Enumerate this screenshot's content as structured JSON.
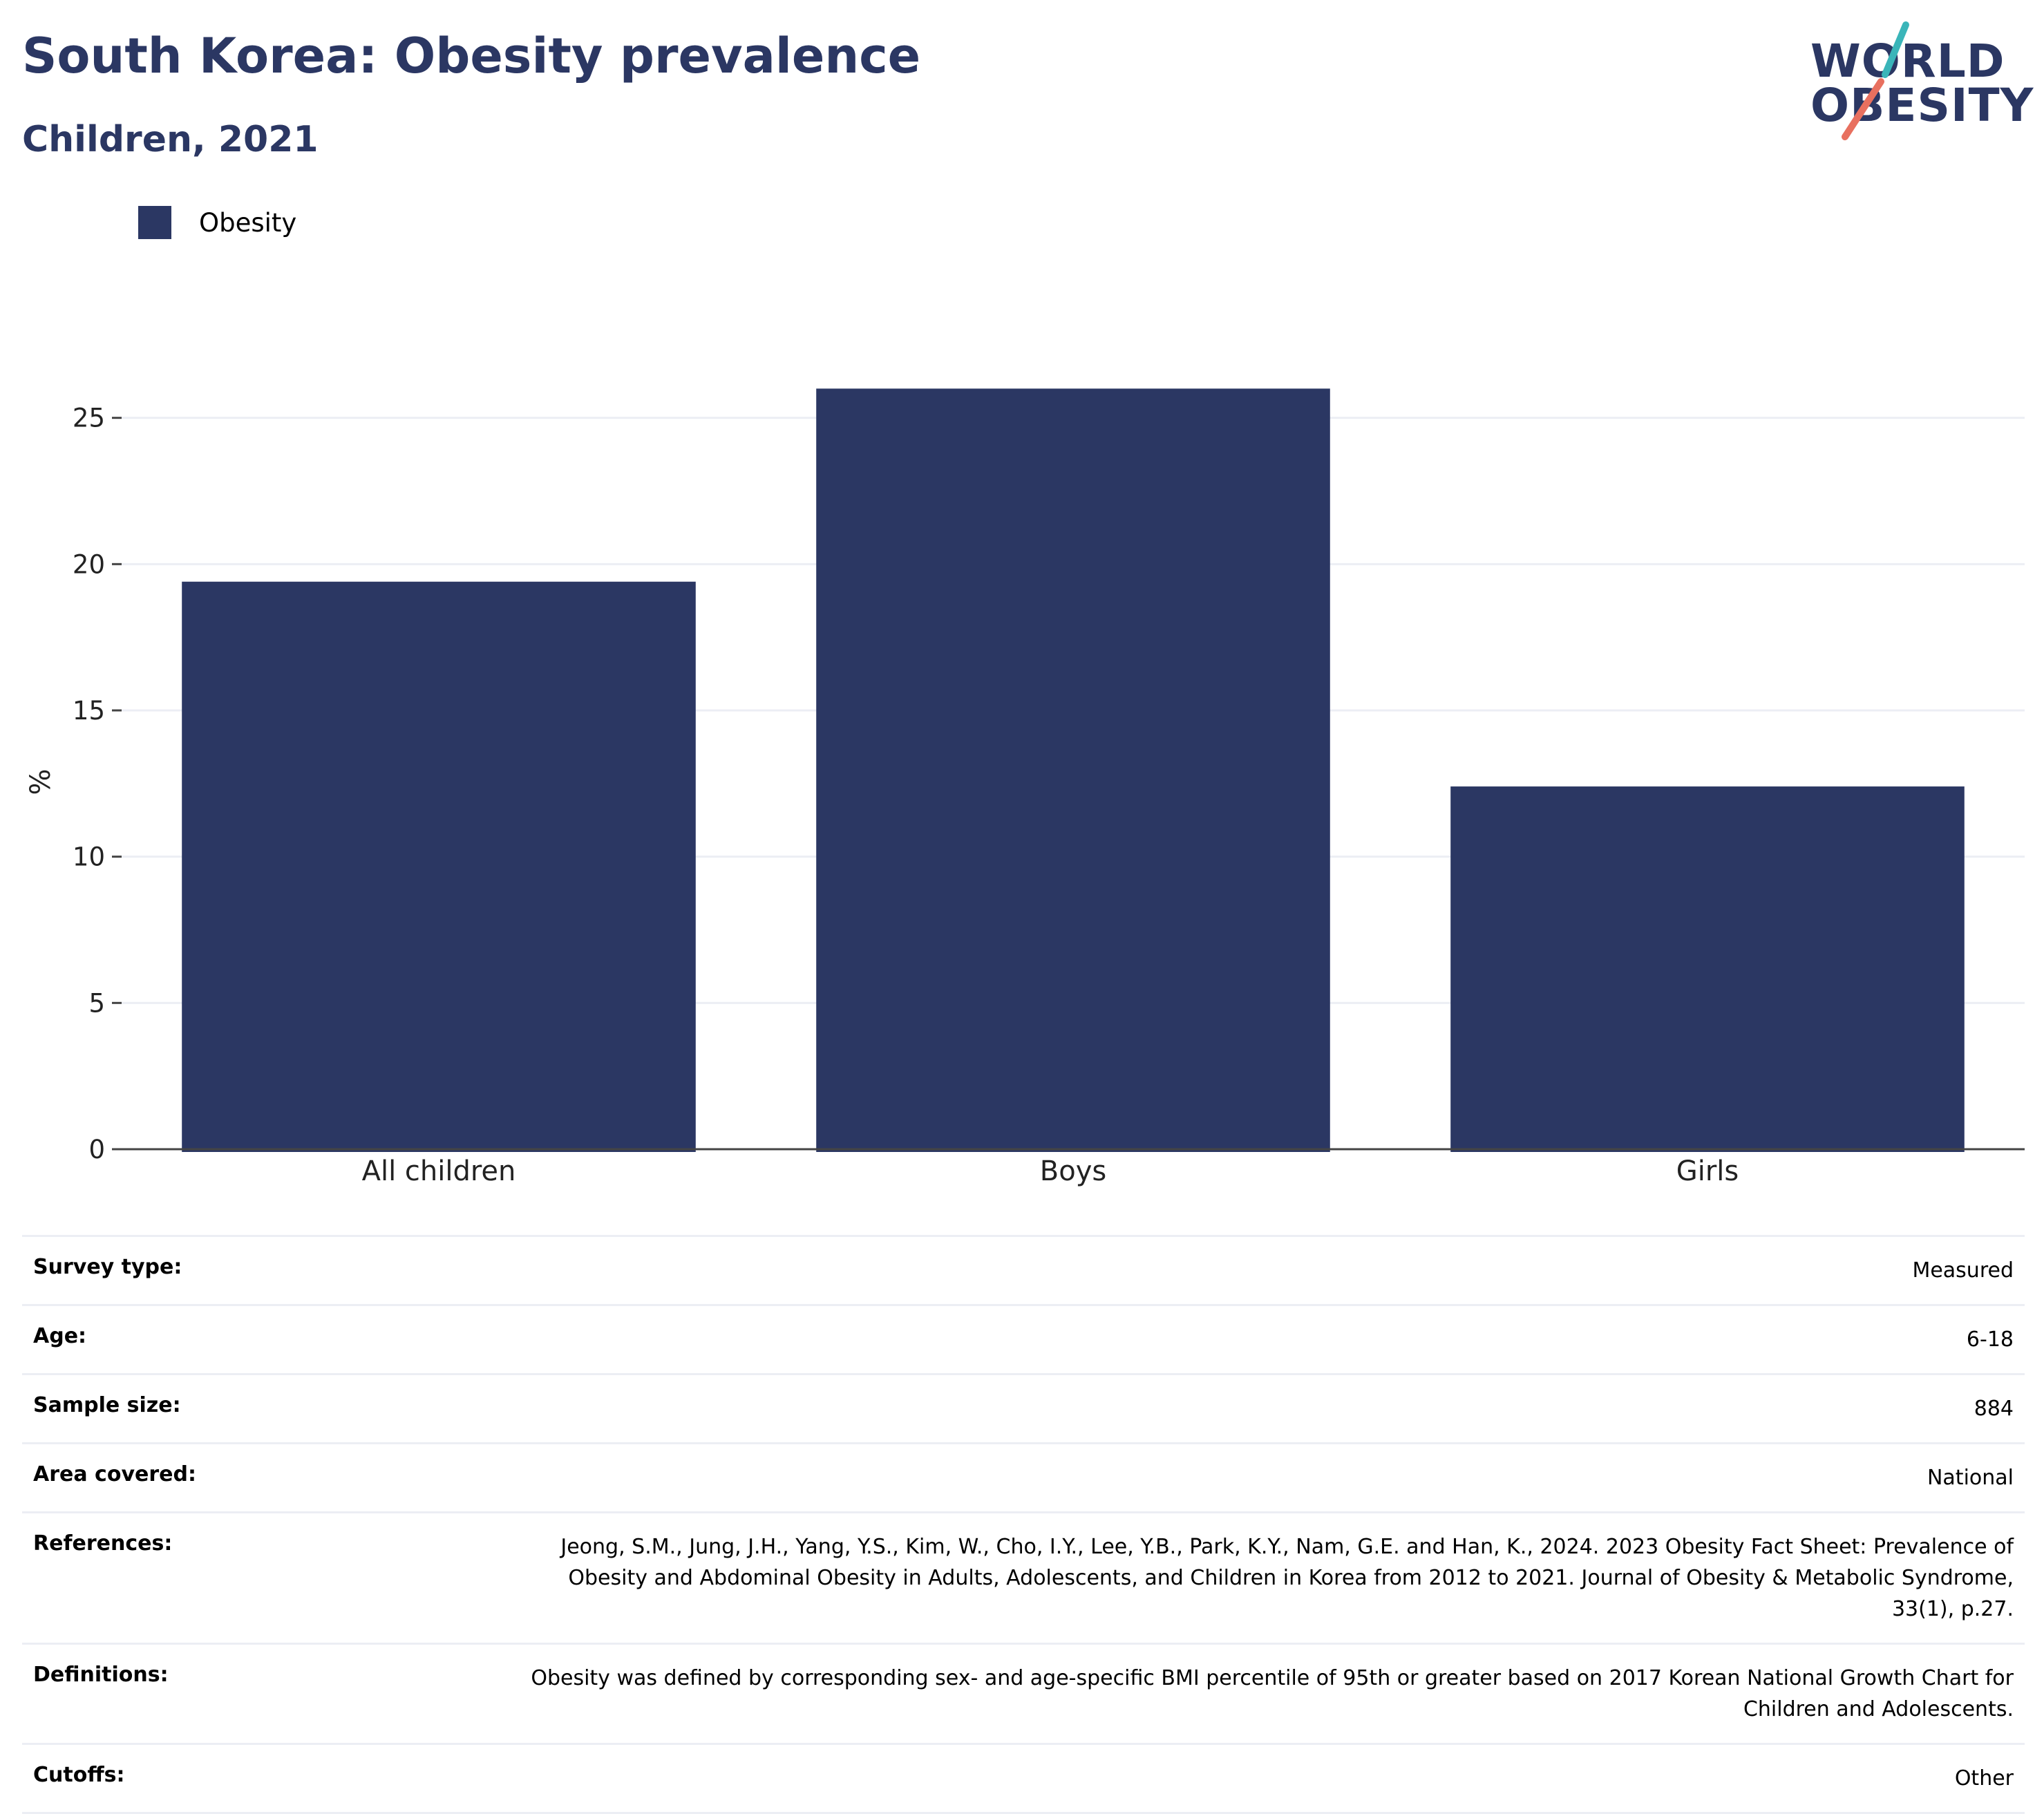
{
  "header": {
    "title": "South Korea: Obesity prevalence",
    "subtitle": "Children, 2021",
    "logo_text": [
      "WORLD",
      "OBESITY"
    ]
  },
  "colors": {
    "bar": "#2b3763",
    "title": "#2b3763",
    "grid": "#eceef4",
    "logo_teal": "#3ab5b9",
    "logo_coral": "#e8705f"
  },
  "legend": {
    "items": [
      {
        "label": "Obesity",
        "color": "#2b3763"
      }
    ]
  },
  "chart_data": {
    "type": "bar",
    "title": "South Korea: Obesity prevalence",
    "subtitle": "Children, 2021",
    "categories": [
      "All children",
      "Boys",
      "Girls"
    ],
    "series": [
      {
        "name": "Obesity",
        "values": [
          19.4,
          26.0,
          12.4
        ]
      }
    ],
    "xlabel": "",
    "ylabel": "%",
    "ylim": [
      0,
      27
    ],
    "yticks": [
      0,
      5,
      10,
      15,
      20,
      25
    ],
    "grid": true,
    "legend_position": "top-left"
  },
  "info": [
    {
      "label": "Survey type:",
      "value": "Measured"
    },
    {
      "label": "Age:",
      "value": "6-18"
    },
    {
      "label": "Sample size:",
      "value": "884"
    },
    {
      "label": "Area covered:",
      "value": "National"
    },
    {
      "label": "References:",
      "value": "Jeong, S.M., Jung, J.H., Yang, Y.S., Kim, W., Cho, I.Y., Lee, Y.B., Park, K.Y., Nam, G.E. and Han, K., 2024. 2023 Obesity Fact Sheet: Prevalence of Obesity and Abdominal Obesity in Adults, Adolescents, and Children in Korea from 2012 to 2021. Journal of Obesity & Metabolic Syndrome, 33(1), p.27."
    },
    {
      "label": "Definitions:",
      "value": "Obesity was defined by corresponding sex- and age-specific BMI percentile of 95th or greater based on 2017 Korean National Growth Chart for Children and Adolescents."
    },
    {
      "label": "Cutoffs:",
      "value": "Other"
    }
  ]
}
